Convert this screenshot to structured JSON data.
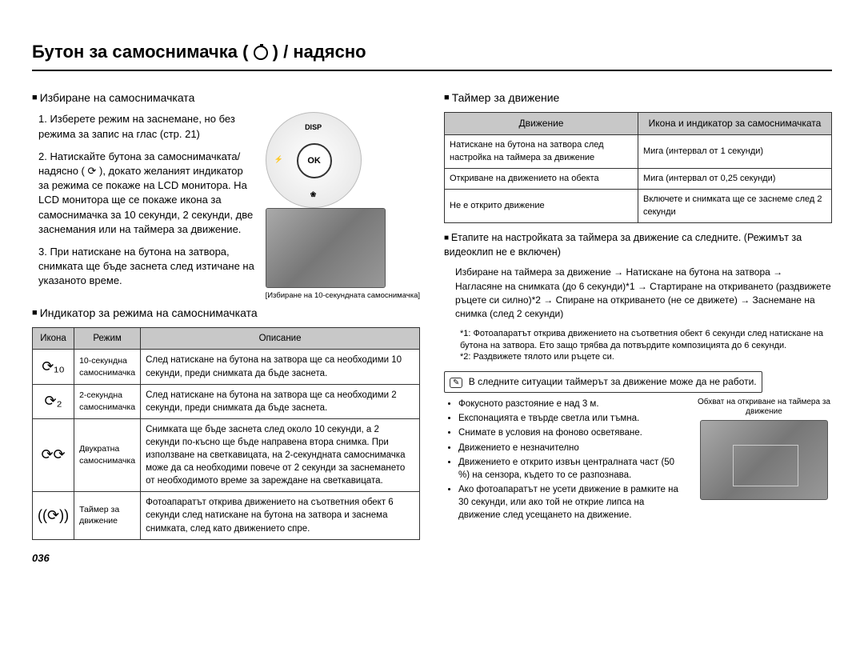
{
  "title_prefix": "Бутон за самоснимачка (",
  "title_suffix": ") / надясно",
  "page_number": "036",
  "left": {
    "section1_title": "Избиране на самоснимачката",
    "step1": "1. Изберете режим на заснемане, но без режима за запис на глас (стр. 21)",
    "step2": "2. Натискайте бутона за самоснимачката/надясно ( ⟳ ), докато желаният индикатор за режима се покаже на LCD монитора. На LCD монитора ще се покаже икона за самоснимачка за 10 секунди, 2 секунди, две заснемания или на таймера за движение.",
    "step3": "3. При натискане на бутона на затвора, снимката ще бъде заснета след изтичане на указаното време.",
    "dial": {
      "top": "DISP",
      "center": "OK",
      "left": "⚡",
      "bottom": "❀"
    },
    "lcd_caption": "[Избиране на 10-секундната самоснимачка]",
    "section2_title": "Индикатор за режима на самоснимачката",
    "table_headers": {
      "icon": "Икона",
      "mode": "Режим",
      "desc": "Описание"
    },
    "rows": [
      {
        "icon": "⟳₁₀",
        "mode": "10-секундна самоснимачка",
        "desc": "След натискане на бутона на затвора ще са необходими 10 секунди, преди снимката да бъде заснета."
      },
      {
        "icon": "⟳₂",
        "mode": "2-секундна самоснимачка",
        "desc": "След натискане на бутона на затвора ще са необходими 2 секунди, преди снимката да бъде заснета."
      },
      {
        "icon": "⟳⟳",
        "mode": "Двукратна самоснимачка",
        "desc": "Снимката ще бъде заснета след около 10 секунди, а 2 секунди по-късно ще бъде направена втора снимка. При използване на светкавицата, на 2-секундната самоснимачка може да са необходими повече от 2 секунди за заснемането от необходимото време за зареждане на светкавицата."
      },
      {
        "icon": "((⟳))",
        "mode": "Таймер за движение",
        "desc": "Фотоапаратът открива движението на съответния обект 6 секунди след натискане на бутона на затвора и заснема снимката, след като движението спре."
      }
    ]
  },
  "right": {
    "section_title": "Таймер за движение",
    "table_headers": {
      "col1": "Движение",
      "col2": "Икона и индикатор за самоснимачката"
    },
    "rows": [
      {
        "c1": "Натискане на бутона на затвора след настройка на таймера за движение",
        "c2": "Мига (интервал от 1 секунди)"
      },
      {
        "c1": "Откриване на движението на обекта",
        "c2": "Мига (интервал от 0,25 секунди)"
      },
      {
        "c1": "Не е открито движение",
        "c2": "Включете и снимката ще се заснеме след 2 секунди"
      }
    ],
    "stages_intro": "Етапите на настройката за таймера за движение са следните. (Режимът за видеоклип не е включен)",
    "flow": "Избиране на таймера за движение → Натискане на бутона на затвора → Нагласяне на снимката (до 6 секунди)*1 → Стартиране на откриването (раздвижете ръцете си силно)*2 → Спиране на откриването (не се движете) → Заснемане на снимка (след 2 секунди)",
    "footnote1": "*1: Фотоапаратът открива движението на съответния обект 6 секунди след натискане на бутона на затвора. Ето защо трябва да потвърдите композицията до 6 секунди.",
    "footnote2": "*2: Раздвижете тялото или ръцете си.",
    "note_text": "В следните ситуации таймерът за движение може да не работи.",
    "bullets": [
      "Фокусното разстояние е над 3 м.",
      "Експонацията е твърде светла или тъмна.",
      "Снимате в условия на фоново осветяване.",
      "Движението е незначително",
      "Движението е открито извън централната част (50 %) на сензора, където то се разпознава.",
      "Ако фотоапаратът не усети движение в рамките на 30 секунди, или ако той не открие липса на движение след усещането на движение."
    ],
    "detect_caption": "Обхват на откриване на таймера за движение"
  }
}
